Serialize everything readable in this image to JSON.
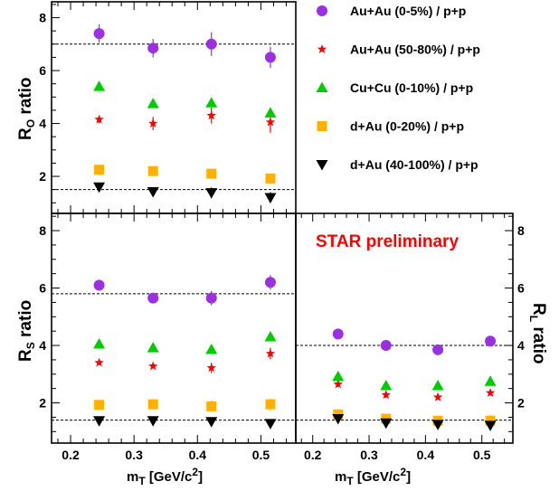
{
  "chart_data": [
    {
      "type": "scatter",
      "panel": "top-left",
      "ylabel": "R_O ratio",
      "ylim": [
        0.6,
        8.6
      ],
      "yticks": [
        2,
        4,
        6,
        8
      ],
      "xlim": [
        0.17,
        0.555
      ],
      "xticks": [
        0.2,
        0.3,
        0.4,
        0.5
      ],
      "reference_lines": [
        7.0,
        1.5
      ],
      "series": [
        {
          "name": "Au+Au (0-5%) / p+p",
          "marker": "circle",
          "color": "#9b30e0",
          "x": [
            0.245,
            0.33,
            0.422,
            0.515
          ],
          "y": [
            7.4,
            6.85,
            7.0,
            6.5
          ],
          "err": [
            0.35,
            0.35,
            0.45,
            0.4
          ]
        },
        {
          "name": "Au+Au (50-80%) / p+p",
          "marker": "star",
          "color": "#ff0000",
          "x": [
            0.245,
            0.33,
            0.422,
            0.515
          ],
          "y": [
            4.15,
            4.0,
            4.3,
            4.05
          ],
          "err": [
            0.15,
            0.25,
            0.3,
            0.4
          ]
        },
        {
          "name": "Cu+Cu (0-10%) / p+p",
          "marker": "triangle-up",
          "color": "#00cc00",
          "x": [
            0.245,
            0.33,
            0.422,
            0.515
          ],
          "y": [
            5.4,
            4.75,
            4.78,
            4.4
          ],
          "err": [
            0.0,
            0.0,
            0.0,
            0.0
          ]
        },
        {
          "name": "d+Au (0-20%) / p+p",
          "marker": "square",
          "color": "#ffb000",
          "x": [
            0.245,
            0.33,
            0.422,
            0.515
          ],
          "y": [
            2.25,
            2.2,
            2.1,
            1.92
          ],
          "err": [
            0.15,
            0.12,
            0.18,
            0.15
          ]
        },
        {
          "name": "d+Au (40-100%) / p+p",
          "marker": "triangle-down",
          "color": "#000000",
          "x": [
            0.245,
            0.33,
            0.422,
            0.515
          ],
          "y": [
            1.6,
            1.42,
            1.38,
            1.2
          ],
          "err": [
            0.0,
            0.0,
            0.2,
            0.2
          ]
        }
      ]
    },
    {
      "type": "scatter",
      "panel": "bottom-left",
      "ylabel": "R_S ratio",
      "xlabel": "m_T [GeV/c^2]",
      "ylim": [
        0.6,
        8.6
      ],
      "yticks": [
        2,
        4,
        6,
        8
      ],
      "xlim": [
        0.17,
        0.555
      ],
      "xticks": [
        0.2,
        0.3,
        0.4,
        0.5
      ],
      "reference_lines": [
        5.8,
        1.4
      ],
      "series": [
        {
          "name": "Au+Au (0-5%) / p+p",
          "marker": "circle",
          "color": "#9b30e0",
          "x": [
            0.245,
            0.33,
            0.422,
            0.515
          ],
          "y": [
            6.1,
            5.65,
            5.65,
            6.2
          ],
          "err": [
            0.0,
            0.0,
            0.25,
            0.25
          ]
        },
        {
          "name": "Au+Au (50-80%) / p+p",
          "marker": "star",
          "color": "#ff0000",
          "x": [
            0.245,
            0.33,
            0.422,
            0.515
          ],
          "y": [
            3.4,
            3.28,
            3.22,
            3.72
          ],
          "err": [
            0.0,
            0.0,
            0.18,
            0.2
          ]
        },
        {
          "name": "Cu+Cu (0-10%) / p+p",
          "marker": "triangle-up",
          "color": "#00cc00",
          "x": [
            0.245,
            0.33,
            0.422,
            0.515
          ],
          "y": [
            4.05,
            3.92,
            3.86,
            4.3
          ],
          "err": [
            0.0,
            0.0,
            0.0,
            0.0
          ]
        },
        {
          "name": "d+Au (0-20%) / p+p",
          "marker": "square",
          "color": "#ffb000",
          "x": [
            0.245,
            0.33,
            0.422,
            0.515
          ],
          "y": [
            1.93,
            1.95,
            1.88,
            1.95
          ],
          "err": [
            0.0,
            0.18,
            0.2,
            0.2
          ]
        },
        {
          "name": "d+Au (40-100%) / p+p",
          "marker": "triangle-down",
          "color": "#000000",
          "x": [
            0.245,
            0.33,
            0.422,
            0.515
          ],
          "y": [
            1.38,
            1.38,
            1.35,
            1.28
          ],
          "err": [
            0.0,
            0.0,
            0.12,
            0.12
          ]
        }
      ]
    },
    {
      "type": "scatter",
      "panel": "bottom-right",
      "ylabel": "R_L ratio",
      "xlabel": "m_T [GeV/c^2]",
      "ylim": [
        0.6,
        8.6
      ],
      "yticks": [
        2,
        4,
        6,
        8
      ],
      "xlim": [
        0.17,
        0.555
      ],
      "xticks": [
        0.2,
        0.3,
        0.4,
        0.5
      ],
      "reference_lines": [
        4.0,
        1.4
      ],
      "series": [
        {
          "name": "Au+Au (0-5%) / p+p",
          "marker": "circle",
          "color": "#9b30e0",
          "x": [
            0.245,
            0.33,
            0.422,
            0.515
          ],
          "y": [
            4.4,
            4.0,
            3.85,
            4.15
          ],
          "err": [
            0.0,
            0.0,
            0.1,
            0.15
          ]
        },
        {
          "name": "Au+Au (50-80%) / p+p",
          "marker": "star",
          "color": "#ff0000",
          "x": [
            0.245,
            0.33,
            0.422,
            0.515
          ],
          "y": [
            2.65,
            2.28,
            2.2,
            2.35
          ],
          "err": [
            0.1,
            0.1,
            0.1,
            0.1
          ]
        },
        {
          "name": "Cu+Cu (0-10%) / p+p",
          "marker": "triangle-up",
          "color": "#00cc00",
          "x": [
            0.245,
            0.33,
            0.422,
            0.515
          ],
          "y": [
            2.92,
            2.6,
            2.6,
            2.75
          ],
          "err": [
            0.0,
            0.0,
            0.0,
            0.0
          ]
        },
        {
          "name": "d+Au (0-20%) / p+p",
          "marker": "square",
          "color": "#ffb000",
          "x": [
            0.245,
            0.33,
            0.422,
            0.515
          ],
          "y": [
            1.6,
            1.45,
            1.38,
            1.38
          ],
          "err": [
            0.0,
            0.0,
            0.08,
            0.2
          ]
        },
        {
          "name": "d+Au (40-100%) / p+p",
          "marker": "triangle-down",
          "color": "#000000",
          "x": [
            0.245,
            0.33,
            0.422,
            0.515
          ],
          "y": [
            1.45,
            1.3,
            1.25,
            1.22
          ],
          "err": [
            0.0,
            0.0,
            0.0,
            0.0
          ]
        }
      ]
    }
  ],
  "legend": [
    {
      "label": "Au+Au (0-5%) / p+p",
      "marker": "circle",
      "color": "#9b30e0"
    },
    {
      "label": "Au+Au (50-80%) / p+p",
      "marker": "star",
      "color": "#ff0000"
    },
    {
      "label": "Cu+Cu (0-10%) / p+p",
      "marker": "triangle-up",
      "color": "#00cc00"
    },
    {
      "label": "d+Au (0-20%) / p+p",
      "marker": "square",
      "color": "#ffb000"
    },
    {
      "label": "d+Au (40-100%) / p+p",
      "marker": "triangle-down",
      "color": "#000000"
    }
  ],
  "labels": {
    "ro_main": "R",
    "ro_sub": "O",
    "ro_rest": " ratio",
    "rs_main": "R",
    "rs_sub": "S",
    "rs_rest": " ratio",
    "rl_main": "R",
    "rl_sub": "L",
    "rl_rest": " ratio",
    "x_main": "m",
    "x_sub": "T",
    "x_rest": " [GeV/c",
    "x_sup": "2",
    "x_end": "]",
    "preliminary": "STAR preliminary",
    "preliminary_color": "#ff0000"
  }
}
